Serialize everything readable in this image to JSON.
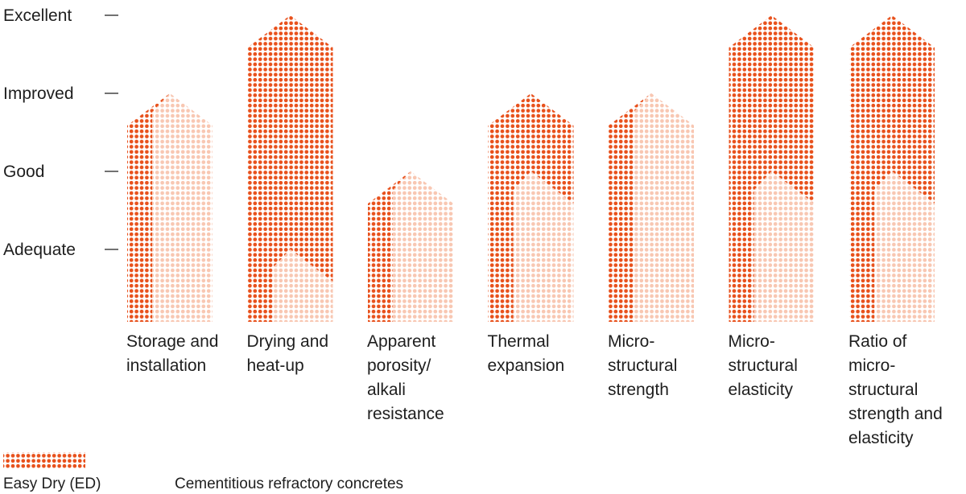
{
  "chart_data": {
    "type": "bar",
    "title": "",
    "xlabel": "",
    "ylabel": "",
    "y_levels": [
      "Adequate",
      "Good",
      "Improved",
      "Excellent"
    ],
    "ylim": [
      0,
      4
    ],
    "grid": false,
    "legend_position": "bottom-left",
    "categories": [
      [
        "Storage and",
        "installation"
      ],
      [
        "Drying and",
        "heat-up"
      ],
      [
        "Apparent",
        "porosity/",
        "alkali",
        "resistance"
      ],
      [
        "Thermal",
        "expansion"
      ],
      [
        "Micro-",
        "structural",
        "strength"
      ],
      [
        "Micro-",
        "structural",
        "elasticity"
      ],
      [
        "Ratio of",
        "micro-",
        "structural",
        "strength and",
        "elasticity"
      ]
    ],
    "series": [
      {
        "name": "Easy Dry (ED)",
        "color": "#e8511c",
        "values": [
          3,
          4,
          2,
          3,
          3,
          4,
          4
        ]
      },
      {
        "name": "Cementitious refractory concretes",
        "color": "#f8c7b2",
        "values": [
          3,
          1,
          2,
          2,
          3,
          2,
          2
        ]
      }
    ]
  }
}
